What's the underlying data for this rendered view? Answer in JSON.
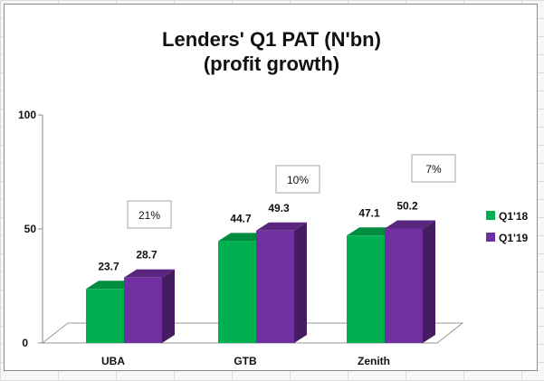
{
  "chart_data": {
    "type": "bar",
    "title": "Lenders' Q1 PAT (N'bn)",
    "subtitle": "(profit growth)",
    "categories": [
      "UBA",
      "GTB",
      "Zenith"
    ],
    "series": [
      {
        "name": "Q1'18",
        "values": [
          23.7,
          44.7,
          47.1
        ],
        "color": "#00b050"
      },
      {
        "name": "Q1'19",
        "values": [
          28.7,
          49.3,
          50.2
        ],
        "color": "#7030a0"
      }
    ],
    "data_labels": [
      [
        "23.7",
        "28.7"
      ],
      [
        "44.7",
        "49.3"
      ],
      [
        "47.1",
        "50.2"
      ]
    ],
    "annotations": [
      "21%",
      "10%",
      "7%"
    ],
    "y_ticks": [
      "0",
      "50",
      "100"
    ],
    "ylim": [
      0,
      100
    ],
    "grid": false,
    "legend_position": "right",
    "style": "3d-column"
  }
}
